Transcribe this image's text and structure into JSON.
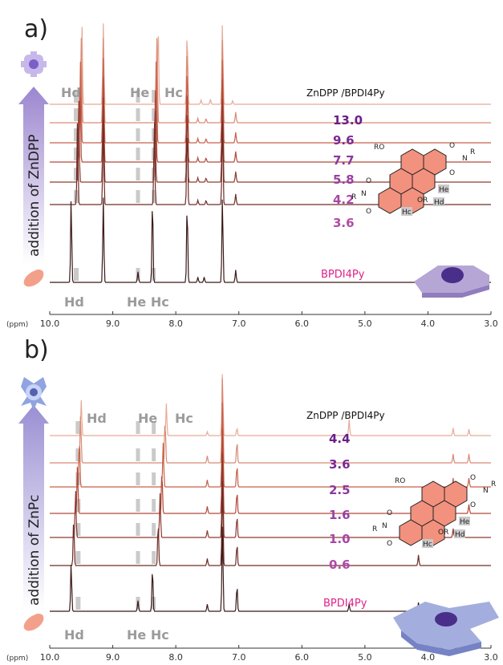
{
  "colors": {
    "trace_dark": "#3a1a18",
    "trace_mid": "#9a3a2c",
    "trace_red": "#c8402e",
    "trace_light": "#e4a896",
    "highlight_gray": "#b9b9b9",
    "ratio_dark": "#6a1e88",
    "ratio_mid": "#8a3a9e",
    "ratio_light": "#b04aa8",
    "compound_pink": "#e0208a",
    "arrow_purple": "#9b86cf",
    "mol_fill": "#f2917d",
    "porphyrin_violet": "#7a5fc6"
  },
  "chart_data": [
    {
      "type": "line",
      "panel_label": "a)",
      "xlabel": "(ppm)",
      "xlim": [
        10.0,
        3.0
      ],
      "xaxis_reversed": true,
      "x_ticks": [
        10.0,
        9.0,
        8.0,
        7.0,
        6.0,
        5.0,
        4.0,
        3.0
      ],
      "x_tick_labels": [
        "10.0",
        "9.0",
        "8.0",
        "7.0",
        "6.0",
        "5.0",
        "4.0",
        "3.0"
      ],
      "arrow_text": "addition of ZnDPP",
      "header": "ZnDPP /BPDI4Py",
      "top_labels": [
        "Hd",
        "He",
        "Hc"
      ],
      "bottom_labels": [
        "Hd",
        "He Hc"
      ],
      "series": [
        {
          "ratio": "13.0",
          "peaks": [
            {
              "x": 9.49,
              "h": 0.96
            },
            {
              "x": 9.15,
              "h": 0.96
            },
            {
              "x": 8.28,
              "h": 0.96
            },
            {
              "x": 7.82,
              "h": 0.9
            },
            {
              "x": 7.26,
              "h": 0.98
            },
            {
              "x": 7.45,
              "h": 0.06
            },
            {
              "x": 7.6,
              "h": 0.05
            },
            {
              "x": 7.1,
              "h": 0.04
            }
          ]
        },
        {
          "ratio": "9.6",
          "peaks": [
            {
              "x": 9.5,
              "h": 0.96
            },
            {
              "x": 9.15,
              "h": 0.96
            },
            {
              "x": 8.3,
              "h": 0.96
            },
            {
              "x": 7.82,
              "h": 0.9
            },
            {
              "x": 7.26,
              "h": 0.98
            },
            {
              "x": 7.05,
              "h": 0.12
            },
            {
              "x": 7.52,
              "h": 0.05
            },
            {
              "x": 7.65,
              "h": 0.05
            }
          ]
        },
        {
          "ratio": "7.7",
          "peaks": [
            {
              "x": 9.51,
              "h": 0.96
            },
            {
              "x": 9.15,
              "h": 0.96
            },
            {
              "x": 8.31,
              "h": 0.96
            },
            {
              "x": 7.82,
              "h": 0.9
            },
            {
              "x": 7.26,
              "h": 0.98
            },
            {
              "x": 7.05,
              "h": 0.12
            },
            {
              "x": 7.52,
              "h": 0.05
            },
            {
              "x": 7.65,
              "h": 0.05
            }
          ]
        },
        {
          "ratio": "5.8",
          "peaks": [
            {
              "x": 9.52,
              "h": 0.96
            },
            {
              "x": 9.15,
              "h": 0.96
            },
            {
              "x": 8.32,
              "h": 0.96
            },
            {
              "x": 7.82,
              "h": 0.9
            },
            {
              "x": 7.26,
              "h": 0.98
            },
            {
              "x": 7.05,
              "h": 0.12
            },
            {
              "x": 7.52,
              "h": 0.05
            },
            {
              "x": 7.65,
              "h": 0.05
            }
          ]
        },
        {
          "ratio": "4.2",
          "peaks": [
            {
              "x": 9.54,
              "h": 0.96
            },
            {
              "x": 9.15,
              "h": 0.96
            },
            {
              "x": 8.33,
              "h": 0.96
            },
            {
              "x": 7.82,
              "h": 0.9
            },
            {
              "x": 7.26,
              "h": 0.98
            },
            {
              "x": 7.05,
              "h": 0.12
            },
            {
              "x": 7.52,
              "h": 0.05
            },
            {
              "x": 7.65,
              "h": 0.05
            }
          ]
        },
        {
          "ratio": "3.6",
          "peaks": [
            {
              "x": 9.56,
              "h": 0.96
            },
            {
              "x": 9.15,
              "h": 0.96
            },
            {
              "x": 8.34,
              "h": 0.96
            },
            {
              "x": 7.82,
              "h": 0.9
            },
            {
              "x": 7.26,
              "h": 0.98
            },
            {
              "x": 7.05,
              "h": 0.12
            },
            {
              "x": 7.52,
              "h": 0.05
            },
            {
              "x": 7.65,
              "h": 0.05
            }
          ]
        },
        {
          "ratio": "BPDI4Py",
          "peaks": [
            {
              "x": 9.66,
              "h": 0.96
            },
            {
              "x": 9.15,
              "h": 0.96
            },
            {
              "x": 8.6,
              "h": 0.12
            },
            {
              "x": 8.37,
              "h": 0.96
            },
            {
              "x": 7.82,
              "h": 0.9
            },
            {
              "x": 7.26,
              "h": 0.98
            },
            {
              "x": 7.05,
              "h": 0.14
            },
            {
              "x": 7.55,
              "h": 0.06
            },
            {
              "x": 7.65,
              "h": 0.06
            }
          ]
        }
      ]
    },
    {
      "type": "line",
      "panel_label": "b)",
      "xlabel": "(ppm)",
      "xlim": [
        10.0,
        3.0
      ],
      "xaxis_reversed": true,
      "x_ticks": [
        10.0,
        9.0,
        8.0,
        7.0,
        6.0,
        5.0,
        4.0,
        3.0
      ],
      "x_tick_labels": [
        "10.0",
        "9.0",
        "8.0",
        "7.0",
        "6.0",
        "5.0",
        "4.0",
        "3.0"
      ],
      "arrow_text": "addition of ZnPc",
      "header": "ZnDPP /BPDI4Py",
      "top_labels": [
        "Hd",
        "He",
        "Hc"
      ],
      "bottom_labels": [
        "Hd",
        "He Hc"
      ],
      "series": [
        {
          "ratio": "4.4",
          "peaks": [
            {
              "x": 9.5,
              "h": 0.55
            },
            {
              "x": 8.15,
              "h": 0.5
            },
            {
              "x": 7.26,
              "h": 1.0
            },
            {
              "x": 7.03,
              "h": 0.12
            },
            {
              "x": 7.5,
              "h": 0.06
            },
            {
              "x": 5.25,
              "h": 0.25
            },
            {
              "x": 3.6,
              "h": 0.12
            },
            {
              "x": 3.35,
              "h": 0.1
            }
          ]
        },
        {
          "ratio": "3.6",
          "peaks": [
            {
              "x": 9.51,
              "h": 0.55
            },
            {
              "x": 8.17,
              "h": 0.5
            },
            {
              "x": 7.26,
              "h": 1.0
            },
            {
              "x": 7.03,
              "h": 0.25
            },
            {
              "x": 7.5,
              "h": 0.08
            },
            {
              "x": 3.6,
              "h": 0.1
            },
            {
              "x": 3.35,
              "h": 0.1
            }
          ]
        },
        {
          "ratio": "2.5",
          "peaks": [
            {
              "x": 9.53,
              "h": 0.55
            },
            {
              "x": 8.2,
              "h": 0.5
            },
            {
              "x": 7.26,
              "h": 1.0
            },
            {
              "x": 7.03,
              "h": 0.25
            },
            {
              "x": 7.5,
              "h": 0.08
            },
            {
              "x": 3.6,
              "h": 0.1
            },
            {
              "x": 3.35,
              "h": 0.1
            }
          ]
        },
        {
          "ratio": "1.6",
          "peaks": [
            {
              "x": 9.56,
              "h": 0.55
            },
            {
              "x": 8.22,
              "h": 0.5
            },
            {
              "x": 7.26,
              "h": 1.0
            },
            {
              "x": 7.03,
              "h": 0.25
            },
            {
              "x": 7.5,
              "h": 0.08
            },
            {
              "x": 3.6,
              "h": 0.1
            },
            {
              "x": 3.35,
              "h": 0.1
            }
          ]
        },
        {
          "ratio": "1.0",
          "peaks": [
            {
              "x": 9.59,
              "h": 0.55
            },
            {
              "x": 8.25,
              "h": 0.5
            },
            {
              "x": 7.26,
              "h": 1.0
            },
            {
              "x": 7.03,
              "h": 0.25
            },
            {
              "x": 7.5,
              "h": 0.08
            },
            {
              "x": 4.15,
              "h": 0.1
            },
            {
              "x": 3.6,
              "h": 0.1
            }
          ]
        },
        {
          "ratio": "0.6",
          "peaks": [
            {
              "x": 9.62,
              "h": 0.55
            },
            {
              "x": 8.28,
              "h": 0.5
            },
            {
              "x": 7.26,
              "h": 1.0
            },
            {
              "x": 7.03,
              "h": 0.25
            },
            {
              "x": 7.5,
              "h": 0.08
            },
            {
              "x": 4.15,
              "h": 0.12
            }
          ]
        },
        {
          "ratio": "BPDI4Py",
          "peaks": [
            {
              "x": 9.66,
              "h": 0.55
            },
            {
              "x": 8.6,
              "h": 0.12
            },
            {
              "x": 8.37,
              "h": 0.5
            },
            {
              "x": 7.26,
              "h": 1.0
            },
            {
              "x": 7.03,
              "h": 0.3
            },
            {
              "x": 7.5,
              "h": 0.08
            },
            {
              "x": 5.25,
              "h": 0.08
            },
            {
              "x": 4.15,
              "h": 0.1
            }
          ]
        }
      ]
    }
  ]
}
